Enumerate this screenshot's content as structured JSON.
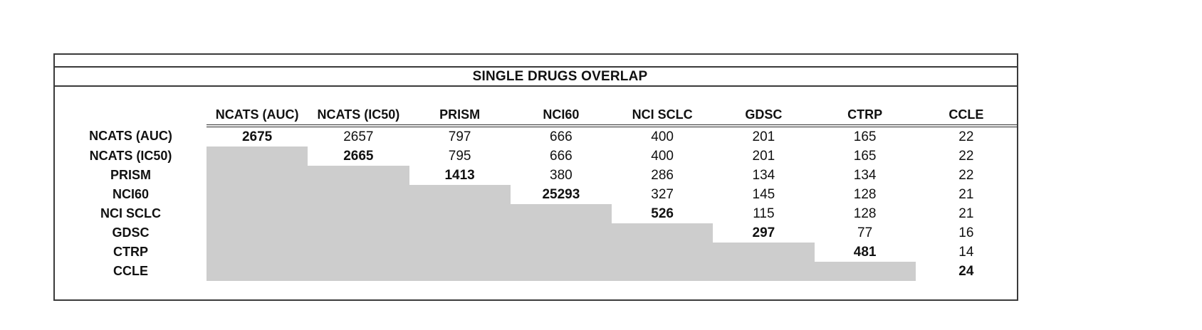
{
  "title": "SINGLE DRUGS OVERLAP",
  "colors": {
    "shaded_cell": "#cdcdcd",
    "border": "#3a3a3a",
    "text": "#111111",
    "background": "#ffffff"
  },
  "chart_data": {
    "type": "table",
    "title": "SINGLE DRUGS OVERLAP",
    "columns": [
      "NCATS (AUC)",
      "NCATS (IC50)",
      "PRISM",
      "NCI60",
      "NCI SCLC",
      "GDSC",
      "CTRP",
      "CCLE"
    ],
    "row_labels": [
      "NCATS (AUC)",
      "NCATS (IC50)",
      "PRISM",
      "NCI60",
      "NCI SCLC",
      "GDSC",
      "CTRP",
      "CCLE"
    ],
    "matrix": [
      [
        2675,
        2657,
        797,
        666,
        400,
        201,
        165,
        22
      ],
      [
        null,
        2665,
        795,
        666,
        400,
        201,
        165,
        22
      ],
      [
        null,
        null,
        1413,
        380,
        286,
        134,
        134,
        22
      ],
      [
        null,
        null,
        null,
        25293,
        327,
        145,
        128,
        21
      ],
      [
        null,
        null,
        null,
        null,
        526,
        115,
        128,
        21
      ],
      [
        null,
        null,
        null,
        null,
        null,
        297,
        77,
        16
      ],
      [
        null,
        null,
        null,
        null,
        null,
        null,
        481,
        14
      ],
      [
        null,
        null,
        null,
        null,
        null,
        null,
        null,
        24
      ]
    ],
    "layout_hints": {
      "diagonal_values_bold": true,
      "lower_triangle_shaded": true,
      "header_underline": "double",
      "gridlines": "off"
    }
  }
}
